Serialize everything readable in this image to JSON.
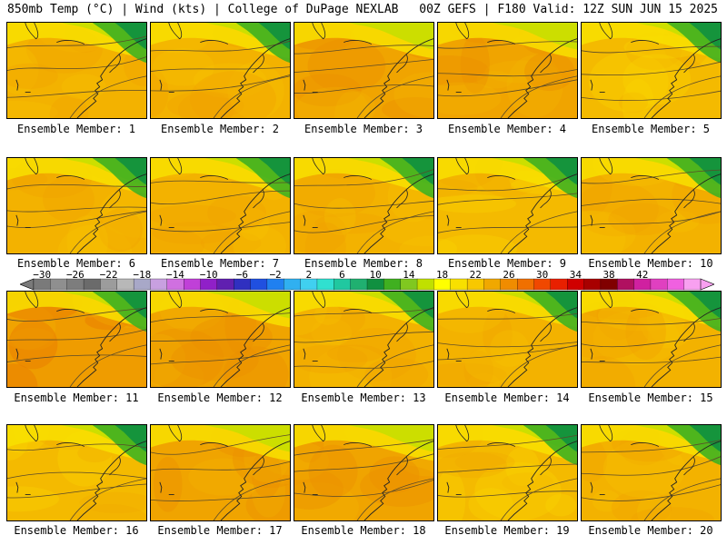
{
  "header": {
    "left": "850mb Temp (°C) | Wind (kts) | College of DuPage NEXLAB",
    "right": "00Z GEFS | F180 Valid: 12Z SUN JUN 15 2025"
  },
  "members": [
    {
      "label": "Ensemble Member: 1",
      "scheme": "cool"
    },
    {
      "label": "Ensemble Member: 2",
      "scheme": "cool"
    },
    {
      "label": "Ensemble Member: 3",
      "scheme": "warm"
    },
    {
      "label": "Ensemble Member: 4",
      "scheme": "warm"
    },
    {
      "label": "Ensemble Member: 5",
      "scheme": "mild"
    },
    {
      "label": "Ensemble Member: 6",
      "scheme": "cool"
    },
    {
      "label": "Ensemble Member: 7",
      "scheme": "cool"
    },
    {
      "label": "Ensemble Member: 8",
      "scheme": "cool"
    },
    {
      "label": "Ensemble Member: 9",
      "scheme": "mild"
    },
    {
      "label": "Ensemble Member: 10",
      "scheme": "cool"
    },
    {
      "label": "Ensemble Member: 11",
      "scheme": "hot"
    },
    {
      "label": "Ensemble Member: 12",
      "scheme": "warm"
    },
    {
      "label": "Ensemble Member: 13",
      "scheme": "cool"
    },
    {
      "label": "Ensemble Member: 14",
      "scheme": "cool"
    },
    {
      "label": "Ensemble Member: 15",
      "scheme": "cool"
    },
    {
      "label": "Ensemble Member: 16",
      "scheme": "mild"
    },
    {
      "label": "Ensemble Member: 17",
      "scheme": "warm"
    },
    {
      "label": "Ensemble Member: 18",
      "scheme": "warm"
    },
    {
      "label": "Ensemble Member: 19",
      "scheme": "mild"
    },
    {
      "label": "Ensemble Member: 20",
      "scheme": "cool"
    }
  ],
  "colorbar": {
    "tick_labels": [
      "−30",
      "−26",
      "−22",
      "−18",
      "−14",
      "−10",
      "−6",
      "−2",
      "2",
      "6",
      "10",
      "14",
      "18",
      "22",
      "26",
      "30",
      "34",
      "38",
      "42"
    ],
    "colors": [
      "#7a7a7a",
      "#8f8f8f",
      "#7d7d7d",
      "#6b6b6b",
      "#9c9c9c",
      "#b8b8b8",
      "#a8a8c8",
      "#c8a0e0",
      "#d070e0",
      "#c040d8",
      "#9020c8",
      "#6020b0",
      "#3030c0",
      "#2050e0",
      "#2080f0",
      "#30b0f0",
      "#40d0f0",
      "#30e0d0",
      "#20c8a0",
      "#20b070",
      "#109040",
      "#40b020",
      "#80c820",
      "#c0e000",
      "#ffff00",
      "#f8e000",
      "#f8c800",
      "#f0a800",
      "#f08c00",
      "#f07000",
      "#f04800",
      "#e82000",
      "#d00000",
      "#a80000",
      "#800000",
      "#b01060",
      "#d020a0",
      "#e040c0",
      "#f060e0",
      "#f8a0f0"
    ]
  }
}
